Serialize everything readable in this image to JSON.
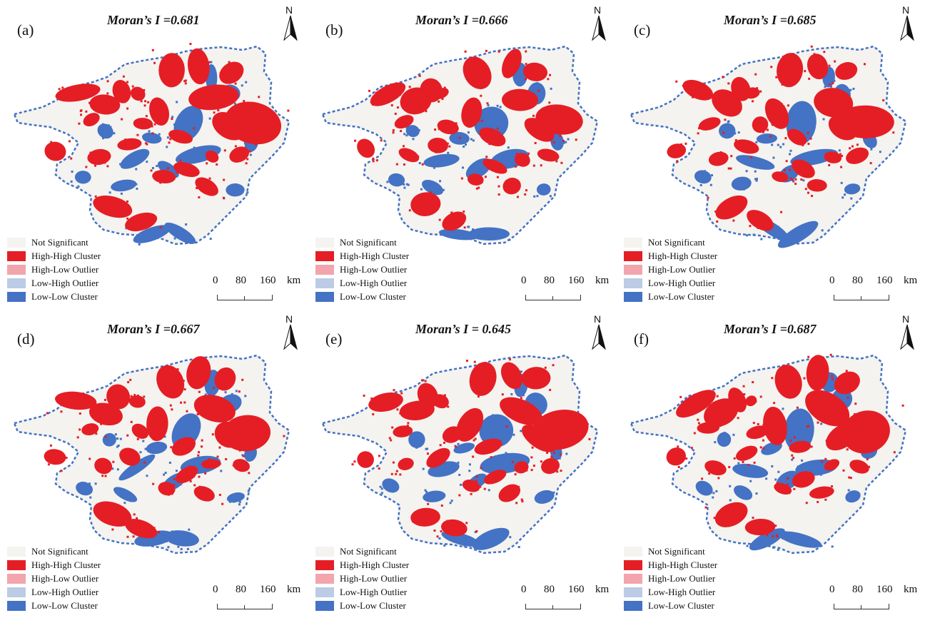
{
  "colors": {
    "not_significant": "#f4f3ef",
    "high_high": "#e51e25",
    "high_low": "#f2a5ad",
    "low_high": "#bccbe6",
    "low_low": "#4472c4",
    "outline": "#4472c4"
  },
  "legend": [
    {
      "label": "Not Significant",
      "color_key": "not_significant"
    },
    {
      "label": "High-High Cluster",
      "color_key": "high_high"
    },
    {
      "label": "High-Low Outlier",
      "color_key": "high_low"
    },
    {
      "label": "Low-High Outlier",
      "color_key": "low_high"
    },
    {
      "label": "Low-Low Cluster",
      "color_key": "low_low"
    }
  ],
  "north_label": "N",
  "scale": {
    "t0": "0",
    "t1": "80",
    "t2": "160",
    "unit": "km"
  },
  "panels": [
    {
      "letter": "(a)",
      "title": "Moran’s I =0.681"
    },
    {
      "letter": "(b)",
      "title": "Moran’s I =0.666"
    },
    {
      "letter": "(c)",
      "title": "Moran’s I =0.685"
    },
    {
      "letter": "(d)",
      "title": "Moran’s I =0.667"
    },
    {
      "letter": "(e)",
      "title": "Moran’s I = 0.645"
    },
    {
      "letter": "(f)",
      "title": "Moran’s I =0.687"
    }
  ]
}
